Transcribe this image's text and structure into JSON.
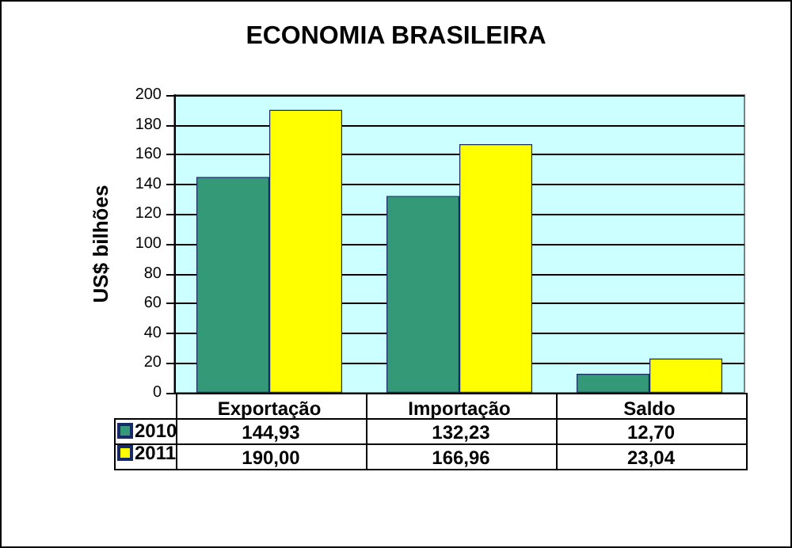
{
  "chart_data": {
    "type": "bar",
    "title": "ECONOMIA BRASILEIRA",
    "ylabel": "US$ bilhões",
    "categories": [
      "Exportação",
      "Importação",
      "Saldo"
    ],
    "series": [
      {
        "name": "2010",
        "color": "#339977",
        "values": [
          144.93,
          132.23,
          12.7
        ],
        "value_labels": [
          "144,93",
          "132,23",
          "12,70"
        ]
      },
      {
        "name": "2011",
        "color": "#ffff00",
        "values": [
          190.0,
          166.96,
          23.04
        ],
        "value_labels": [
          "190,00",
          "166,96",
          "23,04"
        ]
      }
    ],
    "ylim": [
      0,
      200
    ],
    "yticks": [
      0,
      20,
      40,
      60,
      80,
      100,
      120,
      140,
      160,
      180,
      200
    ],
    "grid": "y",
    "legend": "bottom left"
  }
}
